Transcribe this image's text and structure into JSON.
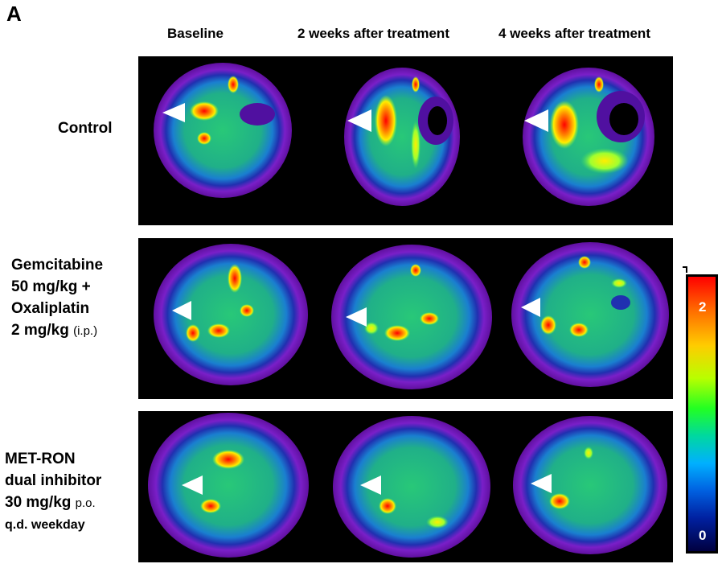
{
  "figure": {
    "panel_letter": "A",
    "columns": [
      "Baseline",
      "2 weeks after treatment",
      "4 weeks after treatment"
    ],
    "rows": [
      {
        "lines": [
          "Control"
        ]
      },
      {
        "lines": [
          "Gemcitabine",
          "50 mg/kg +",
          "Oxaliplatin",
          "2 mg/kg"
        ],
        "suffix": "(i.p.)"
      },
      {
        "lines": [
          "MET-RON",
          "dual inhibitor",
          "30 mg/kg"
        ],
        "line3_suffix": "p.o.",
        "line4": "q.d. weekday"
      }
    ],
    "colorbar": {
      "max_label": "2",
      "min_label": "0"
    }
  }
}
